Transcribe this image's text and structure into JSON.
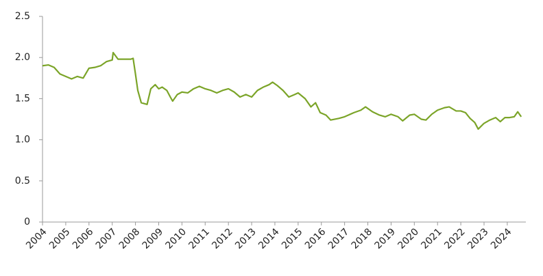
{
  "chart_data": {
    "type": "line",
    "x": [
      2004.0,
      2004.25,
      2004.5,
      2004.75,
      2005.0,
      2005.25,
      2005.5,
      2005.75,
      2006.0,
      2006.25,
      2006.5,
      2006.75,
      2007.0,
      2007.04,
      2007.25,
      2007.5,
      2007.8,
      2007.9,
      2008.0,
      2008.1,
      2008.25,
      2008.5,
      2008.66,
      2008.85,
      2009.0,
      2009.15,
      2009.35,
      2009.5,
      2009.6,
      2009.8,
      2010.0,
      2010.25,
      2010.5,
      2010.75,
      2011.0,
      2011.25,
      2011.5,
      2011.75,
      2012.0,
      2012.25,
      2012.5,
      2012.75,
      2013.0,
      2013.25,
      2013.5,
      2013.75,
      2013.9,
      2014.1,
      2014.35,
      2014.6,
      2014.85,
      2015.0,
      2015.3,
      2015.55,
      2015.75,
      2015.95,
      2016.2,
      2016.4,
      2016.75,
      2017.0,
      2017.4,
      2017.7,
      2017.9,
      2018.2,
      2018.5,
      2018.75,
      2019.0,
      2019.3,
      2019.5,
      2019.8,
      2020.0,
      2020.3,
      2020.5,
      2020.75,
      2021.0,
      2021.3,
      2021.5,
      2021.8,
      2022.0,
      2022.2,
      2022.4,
      2022.6,
      2022.75,
      2023.0,
      2023.25,
      2023.5,
      2023.7,
      2023.9,
      2024.1,
      2024.3,
      2024.45,
      2024.6
    ],
    "series": [
      {
        "color": "#7ba428",
        "values": [
          1.9,
          1.91,
          1.88,
          1.8,
          1.77,
          1.74,
          1.77,
          1.75,
          1.87,
          1.88,
          1.9,
          1.95,
          1.97,
          2.06,
          1.98,
          1.98,
          1.98,
          1.99,
          1.8,
          1.6,
          1.45,
          1.43,
          1.62,
          1.67,
          1.62,
          1.64,
          1.6,
          1.52,
          1.47,
          1.55,
          1.58,
          1.57,
          1.62,
          1.65,
          1.62,
          1.6,
          1.57,
          1.6,
          1.62,
          1.58,
          1.52,
          1.55,
          1.52,
          1.6,
          1.64,
          1.67,
          1.7,
          1.66,
          1.6,
          1.52,
          1.55,
          1.57,
          1.5,
          1.4,
          1.45,
          1.33,
          1.3,
          1.24,
          1.26,
          1.28,
          1.33,
          1.36,
          1.4,
          1.34,
          1.3,
          1.28,
          1.31,
          1.28,
          1.23,
          1.3,
          1.31,
          1.25,
          1.24,
          1.31,
          1.36,
          1.39,
          1.4,
          1.35,
          1.35,
          1.33,
          1.26,
          1.21,
          1.13,
          1.2,
          1.24,
          1.27,
          1.22,
          1.27,
          1.27,
          1.28,
          1.34,
          1.28
        ]
      }
    ],
    "xlim": [
      2004,
      2024.8
    ],
    "xticks": [
      2004,
      2005,
      2006,
      2007,
      2008,
      2009,
      2010,
      2011,
      2012,
      2013,
      2014,
      2015,
      2016,
      2017,
      2018,
      2019,
      2020,
      2021,
      2022,
      2023,
      2024
    ],
    "ylim": [
      0,
      2.5
    ],
    "yticks": [
      0,
      0.5,
      {
        "value": 1,
        "label": "1.0"
      },
      1.5,
      {
        "value": 2,
        "label": "2.0"
      },
      2.5
    ]
  }
}
